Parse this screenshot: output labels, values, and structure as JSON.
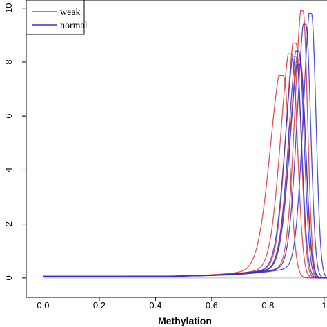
{
  "chart_data": {
    "type": "line",
    "title": "",
    "xlabel": "Methylation",
    "ylabel": "",
    "xlim": [
      -0.06,
      1.02
    ],
    "ylim": [
      -0.72,
      10.3
    ],
    "x_ticks": [
      0.0,
      0.2,
      0.4,
      0.6,
      0.8,
      1.0
    ],
    "x_tick_labels": [
      "0.0",
      "0.2",
      "0.4",
      "0.6",
      "0.8",
      "1"
    ],
    "y_ticks": [
      0,
      2,
      4,
      6,
      8,
      10
    ],
    "y_tick_labels": [
      "0",
      "2",
      "4",
      "6",
      "8",
      "10"
    ],
    "zero_line": true,
    "grid": false,
    "legend": {
      "placement": "top-left",
      "entries": [
        {
          "label": "weak",
          "color": "#e03030"
        },
        {
          "label": "normal",
          "color": "#3030d0"
        }
      ]
    },
    "series": [
      {
        "group": "weak",
        "color": "#e03030",
        "peak_x": 0.855,
        "peak_y": 7.5,
        "left_width": 0.045,
        "right_width": 0.022
      },
      {
        "group": "weak",
        "color": "#e03030",
        "peak_x": 0.885,
        "peak_y": 8.3,
        "left_width": 0.038,
        "right_width": 0.02
      },
      {
        "group": "weak",
        "color": "#e03030",
        "peak_x": 0.9,
        "peak_y": 8.7,
        "left_width": 0.034,
        "right_width": 0.018
      },
      {
        "group": "weak",
        "color": "#e03030",
        "peak_x": 0.915,
        "peak_y": 8.1,
        "left_width": 0.036,
        "right_width": 0.019
      },
      {
        "group": "weak",
        "color": "#e03030",
        "peak_x": 0.925,
        "peak_y": 9.9,
        "left_width": 0.028,
        "right_width": 0.016
      },
      {
        "group": "normal",
        "color": "#3030d0",
        "peak_x": 0.9,
        "peak_y": 8.2,
        "left_width": 0.036,
        "right_width": 0.02
      },
      {
        "group": "normal",
        "color": "#3030d0",
        "peak_x": 0.91,
        "peak_y": 8.4,
        "left_width": 0.034,
        "right_width": 0.019
      },
      {
        "group": "normal",
        "color": "#3030d0",
        "peak_x": 0.915,
        "peak_y": 7.9,
        "left_width": 0.035,
        "right_width": 0.02
      },
      {
        "group": "normal",
        "color": "#3030d0",
        "peak_x": 0.935,
        "peak_y": 9.4,
        "left_width": 0.03,
        "right_width": 0.017
      },
      {
        "group": "normal",
        "color": "#3030d0",
        "peak_x": 0.955,
        "peak_y": 9.8,
        "left_width": 0.028,
        "right_width": 0.016
      }
    ]
  }
}
